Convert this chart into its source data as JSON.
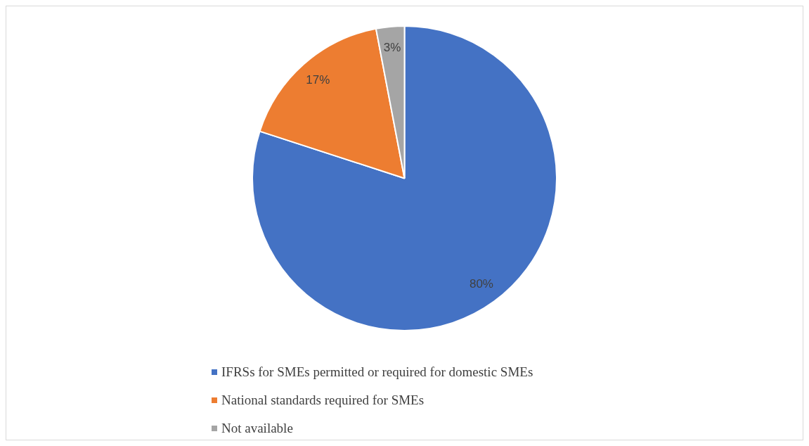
{
  "chart_data": {
    "type": "pie",
    "categories": [
      "IFRSs for SMEs permitted or required for domestic SMEs",
      "National standards required for SMEs",
      "Not available"
    ],
    "values": [
      80,
      17,
      3
    ],
    "colors": [
      "#4472c4",
      "#ed7d31",
      "#a5a5a5"
    ],
    "value_labels": [
      "80%",
      "17%",
      "3%"
    ],
    "legend": "bottom"
  }
}
